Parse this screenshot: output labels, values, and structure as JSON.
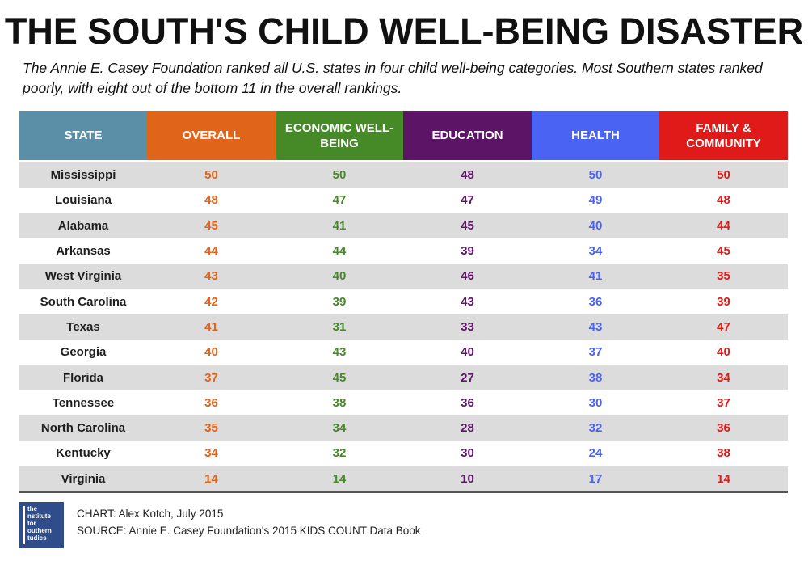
{
  "title": "THE SOUTH'S CHILD WELL-BEING DISASTER",
  "subtitle": "The Annie E. Casey Foundation ranked all U.S. states in four child well-being categories. Most Southern states ranked poorly, with eight out of the bottom 11 in the overall rankings.",
  "colors": {
    "state_header": "#5b8fa8",
    "overall": "#e0641a",
    "economic": "#458a26",
    "education": "#5c1566",
    "health": "#4a63f2",
    "family": "#e01919"
  },
  "chart_data": {
    "type": "table",
    "columns": [
      "STATE",
      "OVERALL",
      "ECONOMIC WELL-BEING",
      "EDUCATION",
      "HEALTH",
      "FAMILY & COMMUNITY"
    ],
    "rows": [
      [
        "Mississippi",
        50,
        50,
        48,
        50,
        50
      ],
      [
        "Louisiana",
        48,
        47,
        47,
        49,
        48
      ],
      [
        "Alabama",
        45,
        41,
        45,
        40,
        44
      ],
      [
        "Arkansas",
        44,
        44,
        39,
        34,
        45
      ],
      [
        "West Virginia",
        43,
        40,
        46,
        41,
        35
      ],
      [
        "South Carolina",
        42,
        39,
        43,
        36,
        39
      ],
      [
        "Texas",
        41,
        31,
        33,
        43,
        47
      ],
      [
        "Georgia",
        40,
        43,
        40,
        37,
        40
      ],
      [
        "Florida",
        37,
        45,
        27,
        38,
        34
      ],
      [
        "Tennessee",
        36,
        38,
        36,
        30,
        37
      ],
      [
        "North Carolina",
        35,
        34,
        28,
        32,
        36
      ],
      [
        "Kentucky",
        34,
        32,
        30,
        24,
        38
      ],
      [
        "Virginia",
        14,
        14,
        10,
        17,
        14
      ]
    ]
  },
  "logo": {
    "lines": [
      "the",
      "nstitute",
      "for",
      "outhern",
      "tudies"
    ]
  },
  "footer": {
    "credit": "CHART: Alex Kotch, July 2015",
    "source": "SOURCE: Annie E. Casey Foundation's 2015 KIDS COUNT Data Book"
  }
}
